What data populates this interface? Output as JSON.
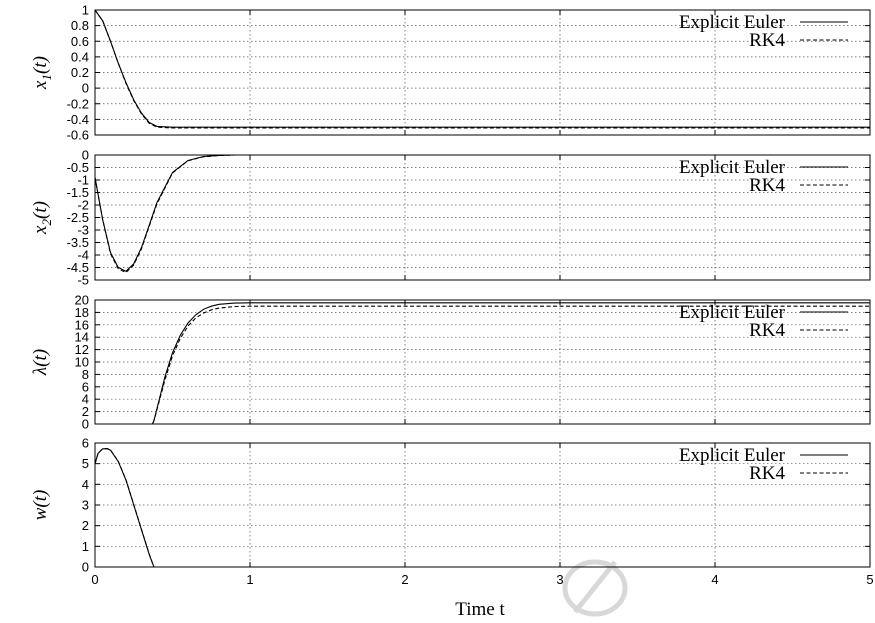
{
  "chart_data": [
    {
      "type": "line",
      "ylabel": "x_1(t)",
      "xlim": [
        0,
        5
      ],
      "ylim": [
        -0.6,
        1
      ],
      "yticks": [
        "1",
        "0.8",
        "0.6",
        "0.4",
        "0.2",
        "0",
        "-0.2",
        "-0.4",
        "-0.6"
      ],
      "ytick_values": [
        1,
        0.8,
        0.6,
        0.4,
        0.2,
        0,
        -0.2,
        -0.4,
        -0.6
      ],
      "legend": "top-right",
      "series": [
        {
          "name": "Explicit Euler",
          "style": "solid",
          "x": [
            0,
            0.05,
            0.1,
            0.15,
            0.2,
            0.25,
            0.3,
            0.35,
            0.4,
            0.5,
            0.6,
            1,
            2,
            3,
            4,
            5
          ],
          "y": [
            1,
            0.86,
            0.6,
            0.32,
            0.07,
            -0.15,
            -0.32,
            -0.44,
            -0.49,
            -0.5,
            -0.5,
            -0.5,
            -0.5,
            -0.5,
            -0.5,
            -0.5
          ]
        },
        {
          "name": "RK4",
          "style": "dashed",
          "x": [
            0,
            0.05,
            0.1,
            0.15,
            0.2,
            0.25,
            0.3,
            0.35,
            0.4,
            0.5,
            0.6,
            1,
            2,
            3,
            4,
            5
          ],
          "y": [
            1,
            0.86,
            0.6,
            0.32,
            0.06,
            -0.16,
            -0.33,
            -0.45,
            -0.5,
            -0.51,
            -0.51,
            -0.51,
            -0.51,
            -0.51,
            -0.51,
            -0.51
          ]
        }
      ]
    },
    {
      "type": "line",
      "ylabel": "x_2(t)",
      "xlim": [
        0,
        5
      ],
      "ylim": [
        -5,
        0
      ],
      "yticks": [
        "0",
        "-0.5",
        "-1",
        "-1.5",
        "-2",
        "-2.5",
        "-3",
        "-3.5",
        "-4",
        "-4.5",
        "-5"
      ],
      "ytick_values": [
        0,
        -0.5,
        -1,
        -1.5,
        -2,
        -2.5,
        -3,
        -3.5,
        -4,
        -4.5,
        -5
      ],
      "legend": "top-right",
      "series": [
        {
          "name": "Explicit Euler",
          "style": "solid",
          "x": [
            0,
            0.05,
            0.1,
            0.15,
            0.2,
            0.25,
            0.3,
            0.35,
            0.4,
            0.5,
            0.6,
            0.7,
            0.8,
            0.9,
            1,
            2,
            5
          ],
          "y": [
            -0.9,
            -2.6,
            -3.9,
            -4.5,
            -4.65,
            -4.35,
            -3.7,
            -2.8,
            -1.9,
            -0.7,
            -0.22,
            -0.06,
            -0.02,
            0,
            0,
            0,
            0
          ]
        },
        {
          "name": "RK4",
          "style": "dashed",
          "x": [
            0,
            0.05,
            0.1,
            0.15,
            0.2,
            0.25,
            0.3,
            0.35,
            0.4,
            0.5,
            0.6,
            0.7,
            0.8,
            0.9,
            1,
            2,
            5
          ],
          "y": [
            -0.9,
            -2.6,
            -3.95,
            -4.55,
            -4.7,
            -4.4,
            -3.75,
            -2.85,
            -1.95,
            -0.72,
            -0.23,
            -0.07,
            -0.02,
            0,
            0,
            0,
            0
          ]
        }
      ]
    },
    {
      "type": "line",
      "ylabel": "λ(t)",
      "xlim": [
        0,
        5
      ],
      "ylim": [
        0,
        20
      ],
      "yticks": [
        "20",
        "18",
        "16",
        "14",
        "12",
        "10",
        "8",
        "6",
        "4",
        "2",
        "0"
      ],
      "ytick_values": [
        20,
        18,
        16,
        14,
        12,
        10,
        8,
        6,
        4,
        2,
        0
      ],
      "legend": "top-right",
      "series": [
        {
          "name": "Explicit Euler",
          "style": "solid",
          "x": [
            0,
            0.37,
            0.38,
            0.45,
            0.5,
            0.55,
            0.6,
            0.65,
            0.7,
            0.75,
            0.8,
            0.9,
            1,
            2,
            5
          ],
          "y": [
            0,
            0,
            0.5,
            7.5,
            11.5,
            14.3,
            16.3,
            17.6,
            18.5,
            19.0,
            19.3,
            19.5,
            19.55,
            19.55,
            19.55
          ]
        },
        {
          "name": "RK4",
          "style": "dashed",
          "x": [
            0,
            0.37,
            0.38,
            0.45,
            0.5,
            0.55,
            0.6,
            0.65,
            0.7,
            0.75,
            0.8,
            0.9,
            1,
            2,
            5
          ],
          "y": [
            0,
            0,
            0.5,
            7.0,
            11.0,
            13.8,
            15.8,
            17.1,
            17.9,
            18.4,
            18.7,
            18.95,
            19.0,
            19.0,
            19.0
          ]
        }
      ]
    },
    {
      "type": "line",
      "ylabel": "w(t)",
      "xlabel": "Time t",
      "xlim": [
        0,
        5
      ],
      "ylim": [
        0,
        6
      ],
      "yticks": [
        "6",
        "5",
        "4",
        "3",
        "2",
        "1",
        "0"
      ],
      "ytick_values": [
        6,
        5,
        4,
        3,
        2,
        1,
        0
      ],
      "xticks": [
        "0",
        "1",
        "2",
        "3",
        "4",
        "5"
      ],
      "xtick_values": [
        0,
        1,
        2,
        3,
        4,
        5
      ],
      "legend": "top-right",
      "series": [
        {
          "name": "Explicit Euler",
          "style": "solid",
          "x": [
            0,
            0.02,
            0.05,
            0.08,
            0.1,
            0.15,
            0.2,
            0.25,
            0.3,
            0.35,
            0.38,
            5
          ],
          "y": [
            5,
            5.5,
            5.72,
            5.72,
            5.65,
            5.1,
            4.2,
            3.0,
            1.8,
            0.6,
            0,
            0
          ]
        },
        {
          "name": "RK4",
          "style": "dashed",
          "x": [
            0,
            0.02,
            0.05,
            0.08,
            0.1,
            0.15,
            0.2,
            0.25,
            0.3,
            0.35,
            0.38,
            5
          ],
          "y": [
            5,
            5.5,
            5.73,
            5.73,
            5.66,
            5.12,
            4.22,
            3.02,
            1.82,
            0.62,
            0,
            0
          ]
        }
      ]
    }
  ]
}
